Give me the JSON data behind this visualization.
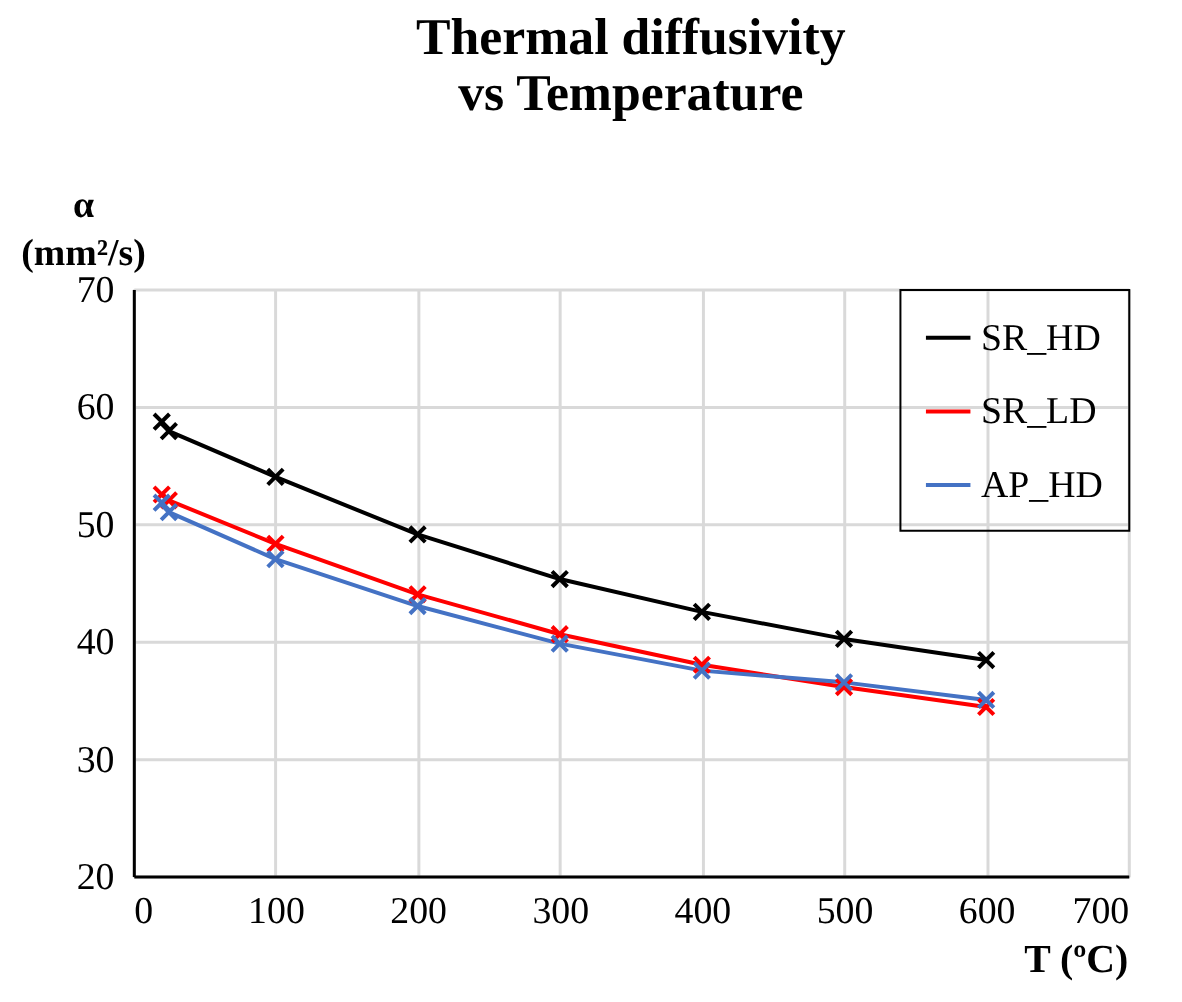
{
  "chart_data": {
    "type": "line",
    "title": [
      "Thermal diffusivity",
      "vs Temperature"
    ],
    "ylabel": [
      "α",
      "(mm²/s)"
    ],
    "xlabel": "T (ºC)",
    "x": [
      20,
      25,
      100,
      200,
      300,
      400,
      500,
      600
    ],
    "series": [
      {
        "name": "SR_HD",
        "color": "#000000",
        "values": [
          58.7,
          57.9,
          54.0,
          49.1,
          45.3,
          42.5,
          40.2,
          38.4
        ]
      },
      {
        "name": "SR_LD",
        "color": "#ff0000",
        "values": [
          52.5,
          52.0,
          48.3,
          44.0,
          40.6,
          38.0,
          36.1,
          34.4
        ]
      },
      {
        "name": "AP_HD",
        "color": "#4472c4",
        "values": [
          51.8,
          51.0,
          47.0,
          43.0,
          39.8,
          37.5,
          36.5,
          35.0
        ]
      }
    ],
    "xlim": [
      0,
      700
    ],
    "xticks": [
      0,
      100,
      200,
      300,
      400,
      500,
      600,
      700
    ],
    "ylim": [
      20,
      70
    ],
    "yticks": [
      20,
      30,
      40,
      50,
      60,
      70
    ],
    "grid": true,
    "legend": "top right",
    "marker": "cross",
    "line_style": "solid"
  }
}
